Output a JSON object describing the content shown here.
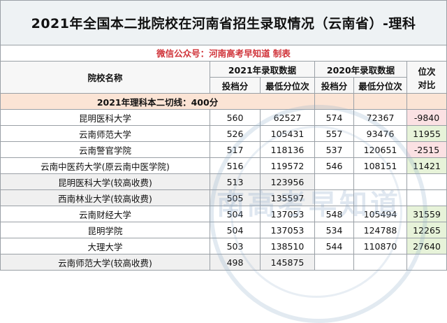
{
  "title": "2021年全国本二批院校在河南省招生录取情况（云南省）-理科",
  "subtitle": "微信公众号：河南高考早知道 制表",
  "headers": {
    "school": "院校名称",
    "y2021": "2021年录取数据",
    "y2020": "2020年录取数据",
    "rank_diff": "位次对比",
    "score": "投档分",
    "min_rank": "最低分位次"
  },
  "cutoff_line": "2021年理科本二切线：400分",
  "watermark": "南高考早知道",
  "rows": [
    {
      "name": "昆明医科大学",
      "s21": "560",
      "r21": "62527",
      "s20": "574",
      "r20": "72367",
      "diff": "-9840",
      "sign": "neg"
    },
    {
      "name": "云南师范大学",
      "s21": "526",
      "r21": "105431",
      "s20": "557",
      "r20": "93476",
      "diff": "11955",
      "sign": "pos"
    },
    {
      "name": "云南警官学院",
      "s21": "517",
      "r21": "118136",
      "s20": "537",
      "r20": "120651",
      "diff": "-2515",
      "sign": "neg"
    },
    {
      "name": "云南中医药大学(原云南中医学院)",
      "s21": "516",
      "r21": "119572",
      "s20": "546",
      "r20": "108151",
      "diff": "11421",
      "sign": "pos"
    },
    {
      "name": "昆明医科大学(较高收费)",
      "s21": "513",
      "r21": "123956",
      "s20": "",
      "r20": "",
      "diff": "",
      "sign": "none"
    },
    {
      "name": "西南林业大学(较高收费)",
      "s21": "505",
      "r21": "135597",
      "s20": "",
      "r20": "",
      "diff": "",
      "sign": "none"
    },
    {
      "name": "云南财经大学",
      "s21": "504",
      "r21": "137053",
      "s20": "548",
      "r20": "105494",
      "diff": "31559",
      "sign": "pos"
    },
    {
      "name": "昆明学院",
      "s21": "504",
      "r21": "137053",
      "s20": "534",
      "r20": "124788",
      "diff": "12265",
      "sign": "pos"
    },
    {
      "name": "大理大学",
      "s21": "503",
      "r21": "138510",
      "s20": "544",
      "r20": "110870",
      "diff": "27640",
      "sign": "pos"
    },
    {
      "name": "云南师范大学(较高收费)",
      "s21": "498",
      "r21": "145875",
      "s20": "",
      "r20": "",
      "diff": "",
      "sign": "none"
    }
  ]
}
